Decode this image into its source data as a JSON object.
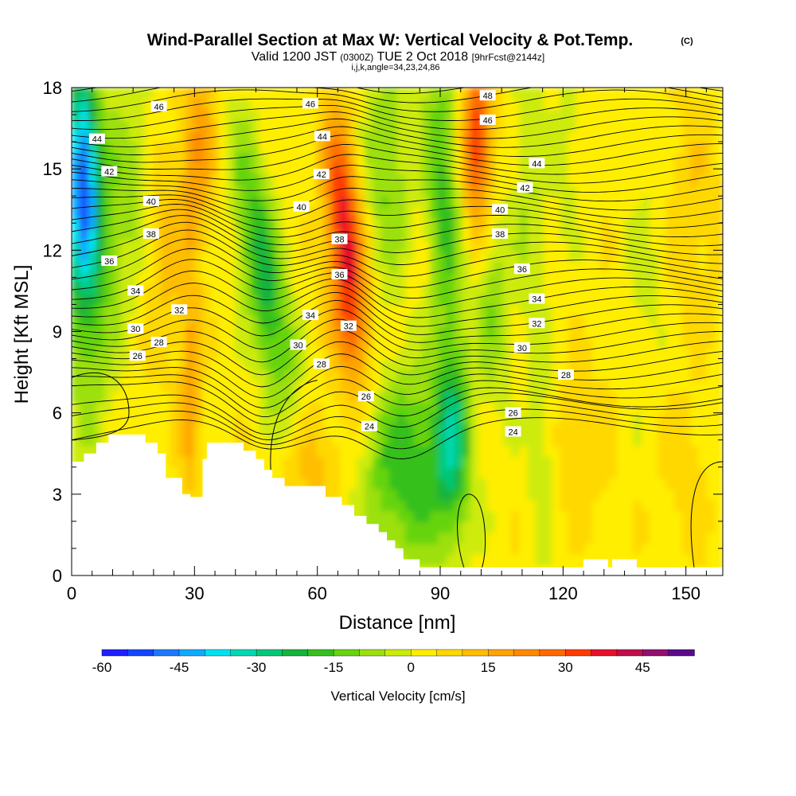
{
  "chart_data": {
    "type": "heatmap",
    "title": "Wind-Parallel Section at Max W: Vertical Velocity & Pot.Temp.",
    "title_tag": "(C)",
    "subtitle_main": "Valid 1200 JST",
    "subtitle_utc": "(0300Z)",
    "subtitle_date": "TUE 2 Oct 2018",
    "subtitle_fcst": "[9hrFcst@2144z]",
    "subtitle_indices": "i,j,k,angle=34,23,24,86",
    "xlabel": "Distance [nm]",
    "ylabel": "Height [Kft MSL]",
    "xlim": [
      0,
      159
    ],
    "ylim": [
      0,
      18
    ],
    "x_ticks": [
      0,
      30,
      60,
      90,
      120,
      150
    ],
    "y_ticks": [
      0,
      3,
      6,
      9,
      12,
      15,
      18
    ],
    "colorbar": {
      "label": "Vertical Velocity [cm/s]",
      "ticks": [
        -60,
        -45,
        -30,
        -15,
        0,
        15,
        30,
        45
      ],
      "range": [
        -60,
        55
      ],
      "colors": [
        "#1f1fff",
        "#1446ff",
        "#1e78ff",
        "#10aaff",
        "#00e2f0",
        "#00d8b4",
        "#00c878",
        "#12b43c",
        "#34c01e",
        "#66d410",
        "#9ce010",
        "#cdeb0a",
        "#ffee00",
        "#ffd800",
        "#ffbe00",
        "#ffa400",
        "#ff8a00",
        "#ff6a00",
        "#ff3c00",
        "#e8102a",
        "#c0104a",
        "#921070",
        "#5a0a8c"
      ]
    },
    "theta_contours_K": [
      24,
      26,
      28,
      30,
      32,
      34,
      36,
      38,
      40,
      42,
      44,
      46,
      48
    ],
    "contour_labels": [
      {
        "text": "46",
        "x": 21.3,
        "y": 17.3
      },
      {
        "text": "44",
        "x": 6.2,
        "y": 16.1
      },
      {
        "text": "42",
        "x": 9.2,
        "y": 14.9
      },
      {
        "text": "40",
        "x": 19.4,
        "y": 13.8
      },
      {
        "text": "38",
        "x": 19.4,
        "y": 12.6
      },
      {
        "text": "36",
        "x": 9.2,
        "y": 11.6
      },
      {
        "text": "34",
        "x": 15.6,
        "y": 10.5
      },
      {
        "text": "32",
        "x": 26.3,
        "y": 9.8
      },
      {
        "text": "30",
        "x": 15.6,
        "y": 9.1
      },
      {
        "text": "28",
        "x": 21.3,
        "y": 8.6
      },
      {
        "text": "26",
        "x": 16.1,
        "y": 8.1
      },
      {
        "text": "46",
        "x": 58.3,
        "y": 17.4
      },
      {
        "text": "44",
        "x": 61.2,
        "y": 16.2
      },
      {
        "text": "42",
        "x": 61.0,
        "y": 14.8
      },
      {
        "text": "40",
        "x": 56.1,
        "y": 13.6
      },
      {
        "text": "38",
        "x": 65.4,
        "y": 12.4
      },
      {
        "text": "36",
        "x": 65.4,
        "y": 11.1
      },
      {
        "text": "34",
        "x": 58.3,
        "y": 9.6
      },
      {
        "text": "32",
        "x": 67.6,
        "y": 9.2
      },
      {
        "text": "30",
        "x": 55.3,
        "y": 8.5
      },
      {
        "text": "28",
        "x": 61.0,
        "y": 7.8
      },
      {
        "text": "26",
        "x": 71.9,
        "y": 6.6
      },
      {
        "text": "24",
        "x": 72.7,
        "y": 5.5
      },
      {
        "text": "48",
        "x": 101.6,
        "y": 17.7
      },
      {
        "text": "46",
        "x": 101.6,
        "y": 16.8
      },
      {
        "text": "44",
        "x": 113.6,
        "y": 15.2
      },
      {
        "text": "42",
        "x": 110.7,
        "y": 14.3
      },
      {
        "text": "40",
        "x": 104.6,
        "y": 13.5
      },
      {
        "text": "38",
        "x": 104.6,
        "y": 12.6
      },
      {
        "text": "36",
        "x": 110.0,
        "y": 11.3
      },
      {
        "text": "34",
        "x": 113.6,
        "y": 10.2
      },
      {
        "text": "32",
        "x": 113.6,
        "y": 9.3
      },
      {
        "text": "30",
        "x": 110.0,
        "y": 8.4
      },
      {
        "text": "28",
        "x": 120.7,
        "y": 7.4
      },
      {
        "text": "26",
        "x": 107.8,
        "y": 6.0
      },
      {
        "text": "24",
        "x": 107.8,
        "y": 5.3
      }
    ]
  }
}
